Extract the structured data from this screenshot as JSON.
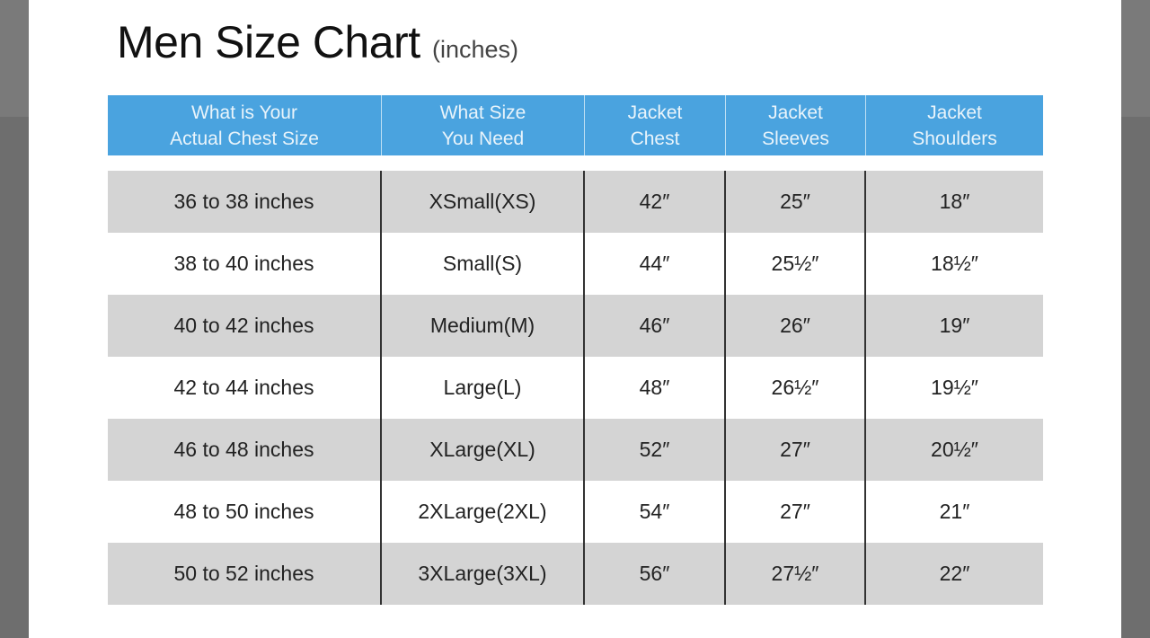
{
  "title": "Men Size Chart",
  "title_unit": "(inches)",
  "colors": {
    "header": "#4aa3df",
    "stripe": "#d4d4d4",
    "overlay": "#6e6e6e"
  },
  "columns": [
    "What is Your\nActual Chest Size",
    "What Size\nYou Need",
    "Jacket\nChest",
    "Jacket\nSleeves",
    "Jacket\nShoulders"
  ],
  "rows": [
    [
      "36 to 38 inches",
      "XSmall(XS)",
      "42″",
      "25″",
      "18″"
    ],
    [
      "38 to 40 inches",
      "Small(S)",
      "44″",
      "25½″",
      "18½″"
    ],
    [
      "40 to 42 inches",
      "Medium(M)",
      "46″",
      "26″",
      "19″"
    ],
    [
      "42 to 44 inches",
      "Large(L)",
      "48″",
      "26½″",
      "19½″"
    ],
    [
      "46 to 48 inches",
      "XLarge(XL)",
      "52″",
      "27″",
      "20½″"
    ],
    [
      "48 to 50 inches",
      "2XLarge(2XL)",
      "54″",
      "27″",
      "21″"
    ],
    [
      "50 to 52 inches",
      "3XLarge(3XL)",
      "56″",
      "27½″",
      "22″"
    ]
  ]
}
